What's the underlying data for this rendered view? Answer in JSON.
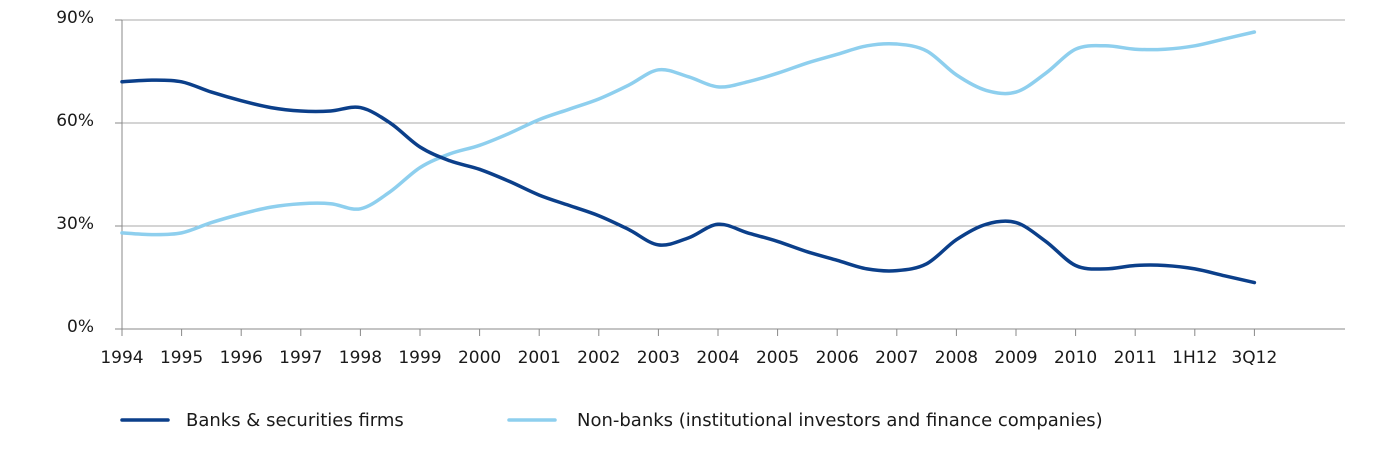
{
  "chart_data": {
    "type": "line",
    "title": "",
    "xlabel": "",
    "ylabel": "",
    "ylim": [
      0,
      90
    ],
    "y_ticks": [
      0,
      30,
      60,
      90
    ],
    "y_tick_labels": [
      "0%",
      "30%",
      "60%",
      "90%"
    ],
    "categories": [
      "1994",
      "1995",
      "1996",
      "1997",
      "1998",
      "1999",
      "2000",
      "2001",
      "2002",
      "2003",
      "2004",
      "2005",
      "2006",
      "2007",
      "2008",
      "2009",
      "2010",
      "2011",
      "1H12",
      "3Q12"
    ],
    "grid": "horizontal",
    "legend_position": "bottom",
    "series": [
      {
        "name": "Banks & securities firms",
        "color": "#0b3f8a",
        "points": [
          [
            0.0,
            72
          ],
          [
            0.5,
            72.5
          ],
          [
            1.0,
            72
          ],
          [
            1.5,
            69
          ],
          [
            2.0,
            66.5
          ],
          [
            2.5,
            64.5
          ],
          [
            3.0,
            63.5
          ],
          [
            3.5,
            63.5
          ],
          [
            4.0,
            64.5
          ],
          [
            4.5,
            60
          ],
          [
            5.0,
            53
          ],
          [
            5.5,
            49
          ],
          [
            6.0,
            46.5
          ],
          [
            6.5,
            43
          ],
          [
            7.0,
            39
          ],
          [
            7.5,
            36
          ],
          [
            8.0,
            33
          ],
          [
            8.5,
            29
          ],
          [
            9.0,
            24.5
          ],
          [
            9.5,
            26.5
          ],
          [
            10.0,
            30.5
          ],
          [
            10.5,
            28
          ],
          [
            11.0,
            25.5
          ],
          [
            11.5,
            22.5
          ],
          [
            12.0,
            20
          ],
          [
            12.5,
            17.5
          ],
          [
            13.0,
            17
          ],
          [
            13.5,
            19
          ],
          [
            14.0,
            26
          ],
          [
            14.5,
            30.5
          ],
          [
            15.0,
            31
          ],
          [
            15.5,
            25.5
          ],
          [
            16.0,
            18.5
          ],
          [
            16.5,
            17.5
          ],
          [
            17.0,
            18.5
          ],
          [
            17.5,
            18.5
          ],
          [
            18.0,
            17.5
          ],
          [
            18.5,
            15.5
          ],
          [
            19.0,
            13.5
          ]
        ]
      },
      {
        "name": "Non-banks (institutional investors and finance companies)",
        "color": "#8ecfee",
        "points": [
          [
            0.0,
            28
          ],
          [
            0.5,
            27.5
          ],
          [
            1.0,
            28
          ],
          [
            1.5,
            31
          ],
          [
            2.0,
            33.5
          ],
          [
            2.5,
            35.5
          ],
          [
            3.0,
            36.5
          ],
          [
            3.5,
            36.5
          ],
          [
            4.0,
            35
          ],
          [
            4.5,
            40
          ],
          [
            5.0,
            47
          ],
          [
            5.5,
            51
          ],
          [
            6.0,
            53.5
          ],
          [
            6.5,
            57
          ],
          [
            7.0,
            61
          ],
          [
            7.5,
            64
          ],
          [
            8.0,
            67
          ],
          [
            8.5,
            71
          ],
          [
            9.0,
            75.5
          ],
          [
            9.5,
            73.5
          ],
          [
            10.0,
            70.5
          ],
          [
            10.5,
            72
          ],
          [
            11.0,
            74.5
          ],
          [
            11.5,
            77.5
          ],
          [
            12.0,
            80
          ],
          [
            12.5,
            82.5
          ],
          [
            13.0,
            83
          ],
          [
            13.5,
            81
          ],
          [
            14.0,
            74
          ],
          [
            14.5,
            69.5
          ],
          [
            15.0,
            69
          ],
          [
            15.5,
            74.5
          ],
          [
            16.0,
            81.5
          ],
          [
            16.5,
            82.5
          ],
          [
            17.0,
            81.5
          ],
          [
            17.5,
            81.5
          ],
          [
            18.0,
            82.5
          ],
          [
            18.5,
            84.5
          ],
          [
            19.0,
            86.5
          ]
        ]
      }
    ]
  }
}
